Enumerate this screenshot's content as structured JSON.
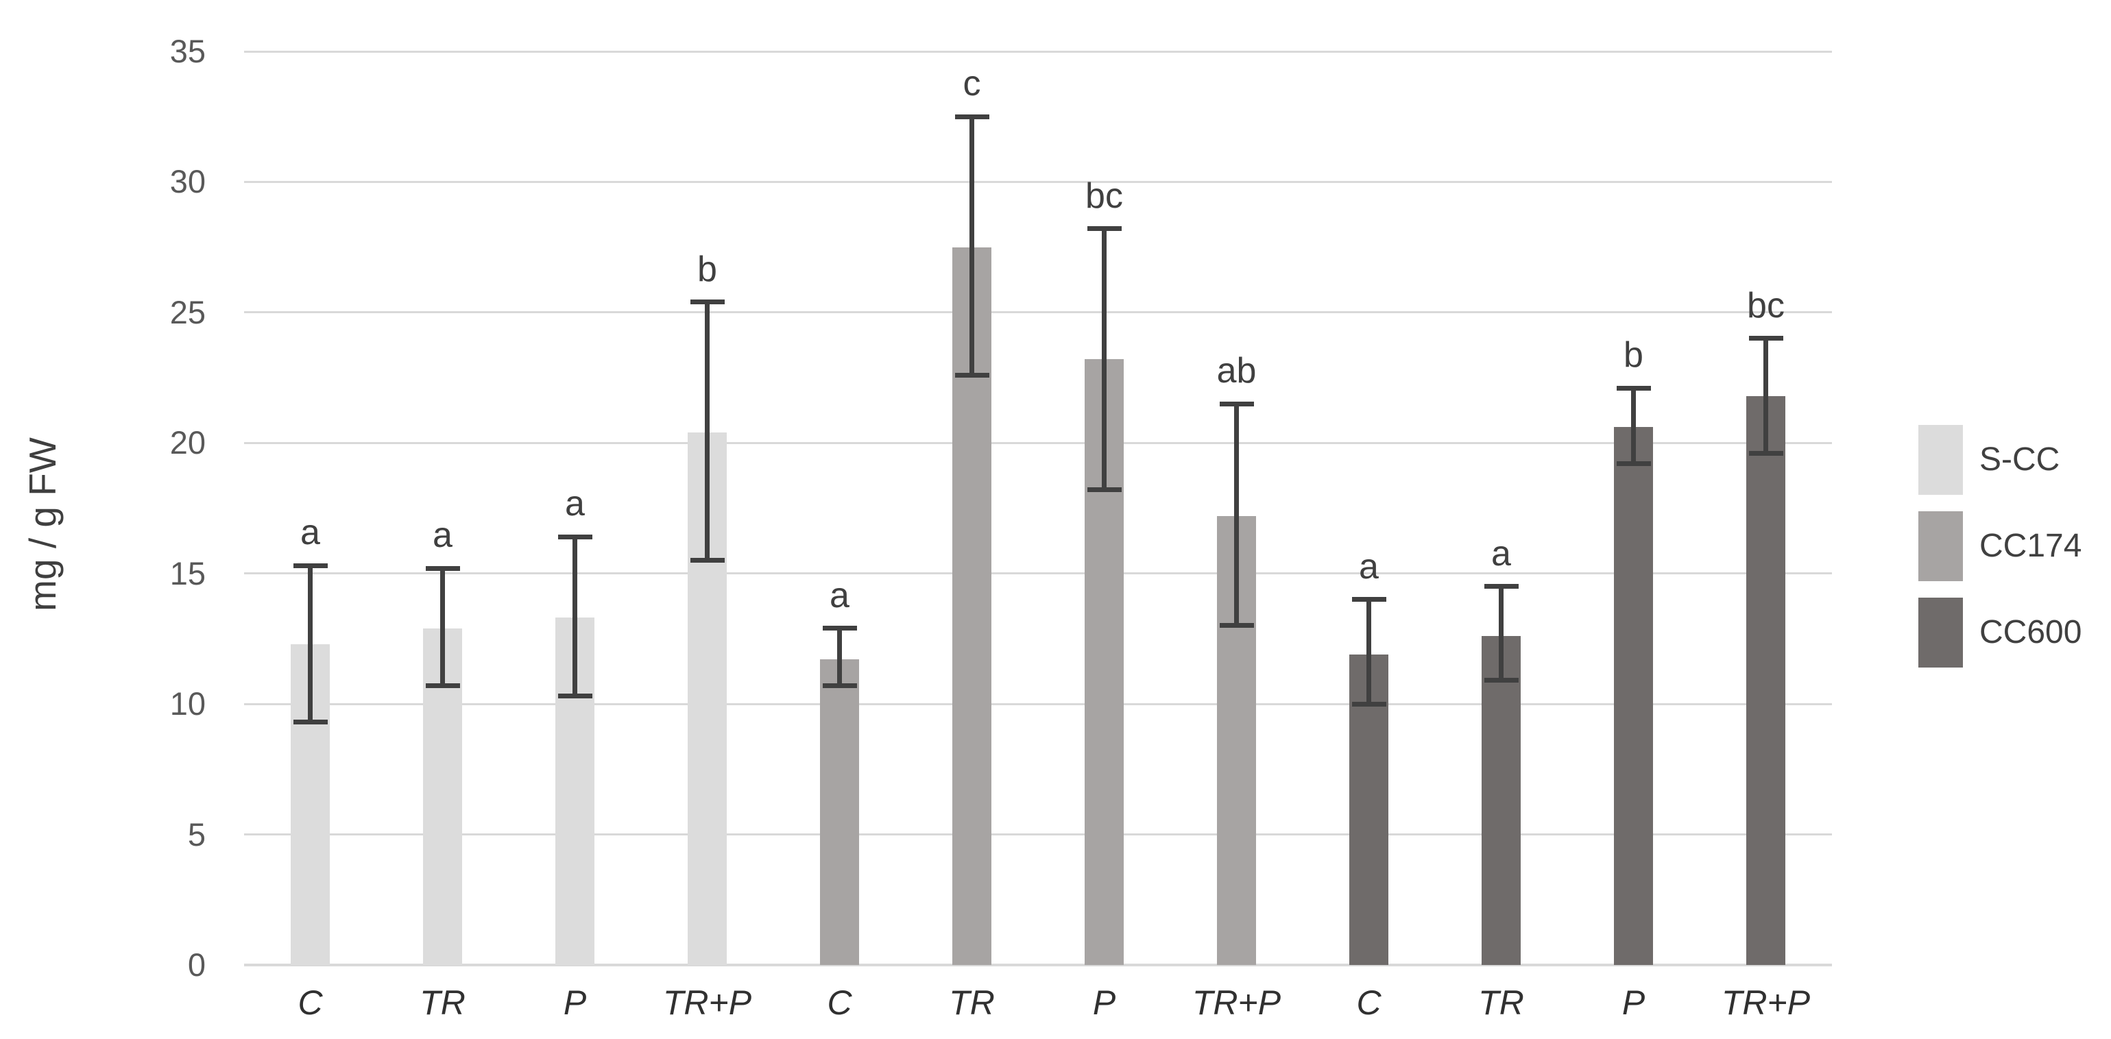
{
  "chart_data": {
    "type": "bar",
    "title": "",
    "ylabel": "mg / g FW",
    "xlabel": "",
    "ylim": [
      0,
      35
    ],
    "y_ticks": [
      0,
      5,
      10,
      15,
      20,
      25,
      30,
      35
    ],
    "grid": "horizontal",
    "categories_per_group": [
      "C",
      "TR",
      "P",
      "TR+P"
    ],
    "legend_position": "right",
    "groups": [
      {
        "name": "S-CC",
        "color": "#dcdcdc",
        "bars": [
          {
            "label": "C",
            "value": 12.3,
            "err_low": 9.3,
            "err_high": 15.3,
            "letter": "a"
          },
          {
            "label": "TR",
            "value": 12.9,
            "err_low": 10.7,
            "err_high": 15.2,
            "letter": "a"
          },
          {
            "label": "P",
            "value": 13.3,
            "err_low": 10.3,
            "err_high": 16.4,
            "letter": "a"
          },
          {
            "label": "TR+P",
            "value": 20.4,
            "err_low": 15.5,
            "err_high": 25.4,
            "letter": "b"
          }
        ]
      },
      {
        "name": "CC174",
        "color": "#a7a4a3",
        "bars": [
          {
            "label": "C",
            "value": 11.7,
            "err_low": 10.7,
            "err_high": 12.9,
            "letter": "a"
          },
          {
            "label": "TR",
            "value": 27.5,
            "err_low": 22.6,
            "err_high": 32.5,
            "letter": "c"
          },
          {
            "label": "P",
            "value": 23.2,
            "err_low": 18.2,
            "err_high": 28.2,
            "letter": "bc"
          },
          {
            "label": "TR+P",
            "value": 17.2,
            "err_low": 13.0,
            "err_high": 21.5,
            "letter": "ab"
          }
        ]
      },
      {
        "name": "CC600",
        "color": "#6f6b6a",
        "bars": [
          {
            "label": "C",
            "value": 11.9,
            "err_low": 10.0,
            "err_high": 14.0,
            "letter": "a"
          },
          {
            "label": "TR",
            "value": 12.6,
            "err_low": 10.9,
            "err_high": 14.5,
            "letter": "a"
          },
          {
            "label": "P",
            "value": 20.6,
            "err_low": 19.2,
            "err_high": 22.1,
            "letter": "b"
          },
          {
            "label": "TR+P",
            "value": 21.8,
            "err_low": 19.6,
            "err_high": 24.0,
            "letter": "bc"
          }
        ]
      }
    ],
    "colors": {
      "background": "#ffffff",
      "gridline": "#d9d9d9",
      "axis_line": "#d9d9d9",
      "error_bar": "#404040",
      "y_tick_text": "#595959",
      "x_tick_text": "#303030",
      "letter_text": "#404040",
      "axis_title_text": "#3f3f3f",
      "legend_text": "#404040"
    }
  }
}
